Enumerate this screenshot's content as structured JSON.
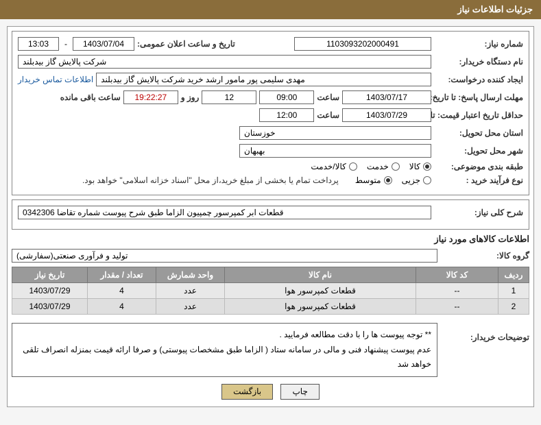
{
  "header": {
    "title": "جزئیات اطلاعات نیاز"
  },
  "form": {
    "reqNum": {
      "label": "شماره نیاز:",
      "value": "1103093202000491"
    },
    "announce": {
      "label": "تاریخ و ساعت اعلان عمومی:",
      "date": "1403/07/04",
      "dash": " - ",
      "time": "13:03"
    },
    "buyerOrg": {
      "label": "نام دستگاه خریدار:",
      "value": "شرکت پالایش گاز بیدبلند"
    },
    "requester": {
      "label": "ایجاد کننده درخواست:",
      "value": "مهدی سلیمی پور مامور ارشد خرید شرکت پالایش گاز بیدبلند"
    },
    "contactLink": "اطلاعات تماس خریدار",
    "deadline": {
      "label": "مهلت ارسال پاسخ: تا تاریخ:",
      "date": "1403/07/17",
      "timeLabel": "ساعت",
      "time": "09:00",
      "daysVal": "12",
      "daysLabel": "روز و",
      "countdown": "19:22:27",
      "remainLabel": "ساعت باقی مانده"
    },
    "validity": {
      "label": "حداقل تاریخ اعتبار قیمت: تا تاریخ:",
      "date": "1403/07/29",
      "timeLabel": "ساعت",
      "time": "12:00"
    },
    "province": {
      "label": "استان محل تحویل:",
      "value": "خوزستان"
    },
    "city": {
      "label": "شهر محل تحویل:",
      "value": "بهبهان"
    },
    "category": {
      "label": "طبقه بندی موضوعی:",
      "options": [
        "کالا",
        "خدمت",
        "کالا/خدمت"
      ],
      "selected": 0
    },
    "process": {
      "label": "نوع فرآیند خرید :",
      "options": [
        "جزیی",
        "متوسط"
      ],
      "selected": 1,
      "note": "پرداخت تمام یا بخشی از مبلغ خرید،از محل \"اسناد خزانه اسلامی\" خواهد بود."
    },
    "summary": {
      "label": "شرح کلی نیاز:",
      "value": "قطعات ابر کمپرسور چمپیون  الزاما طبق شرح پیوست شماره تقاضا 0342306"
    }
  },
  "goodsSection": {
    "title": "اطلاعات کالاهای مورد نیاز"
  },
  "group": {
    "label": "گروه کالا:",
    "value": "تولید و فرآوری صنعتی(سفارشی)"
  },
  "table": {
    "headers": [
      "ردیف",
      "کد کالا",
      "نام کالا",
      "واحد شمارش",
      "تعداد / مقدار",
      "تاریخ نیاز"
    ],
    "rows": [
      [
        "1",
        "--",
        "قطعات کمپرسور هوا",
        "عدد",
        "4",
        "1403/07/29"
      ],
      [
        "2",
        "--",
        "قطعات کمپرسور هوا",
        "عدد",
        "4",
        "1403/07/29"
      ]
    ]
  },
  "buyerDesc": {
    "label": "توضیحات خریدار:",
    "line1": "** توجه پیوست ها  را با دقت مطالعه فرمایید .",
    "line2": "عدم پیوست پیشنهاد فنی و مالی در سامانه ستاد ( الزاما طبق مشخصات پیوستی)  و صرفا ارائه قیمت بمنزله انصراف تلقی خواهد شد"
  },
  "buttons": {
    "print": "چاپ",
    "back": "بازگشت"
  },
  "colors": {
    "headerBg": "#8a6d3b",
    "thBg": "#9a9a9a",
    "tdBg": "#e8e8e8",
    "btnBack": "#d9c68a"
  }
}
